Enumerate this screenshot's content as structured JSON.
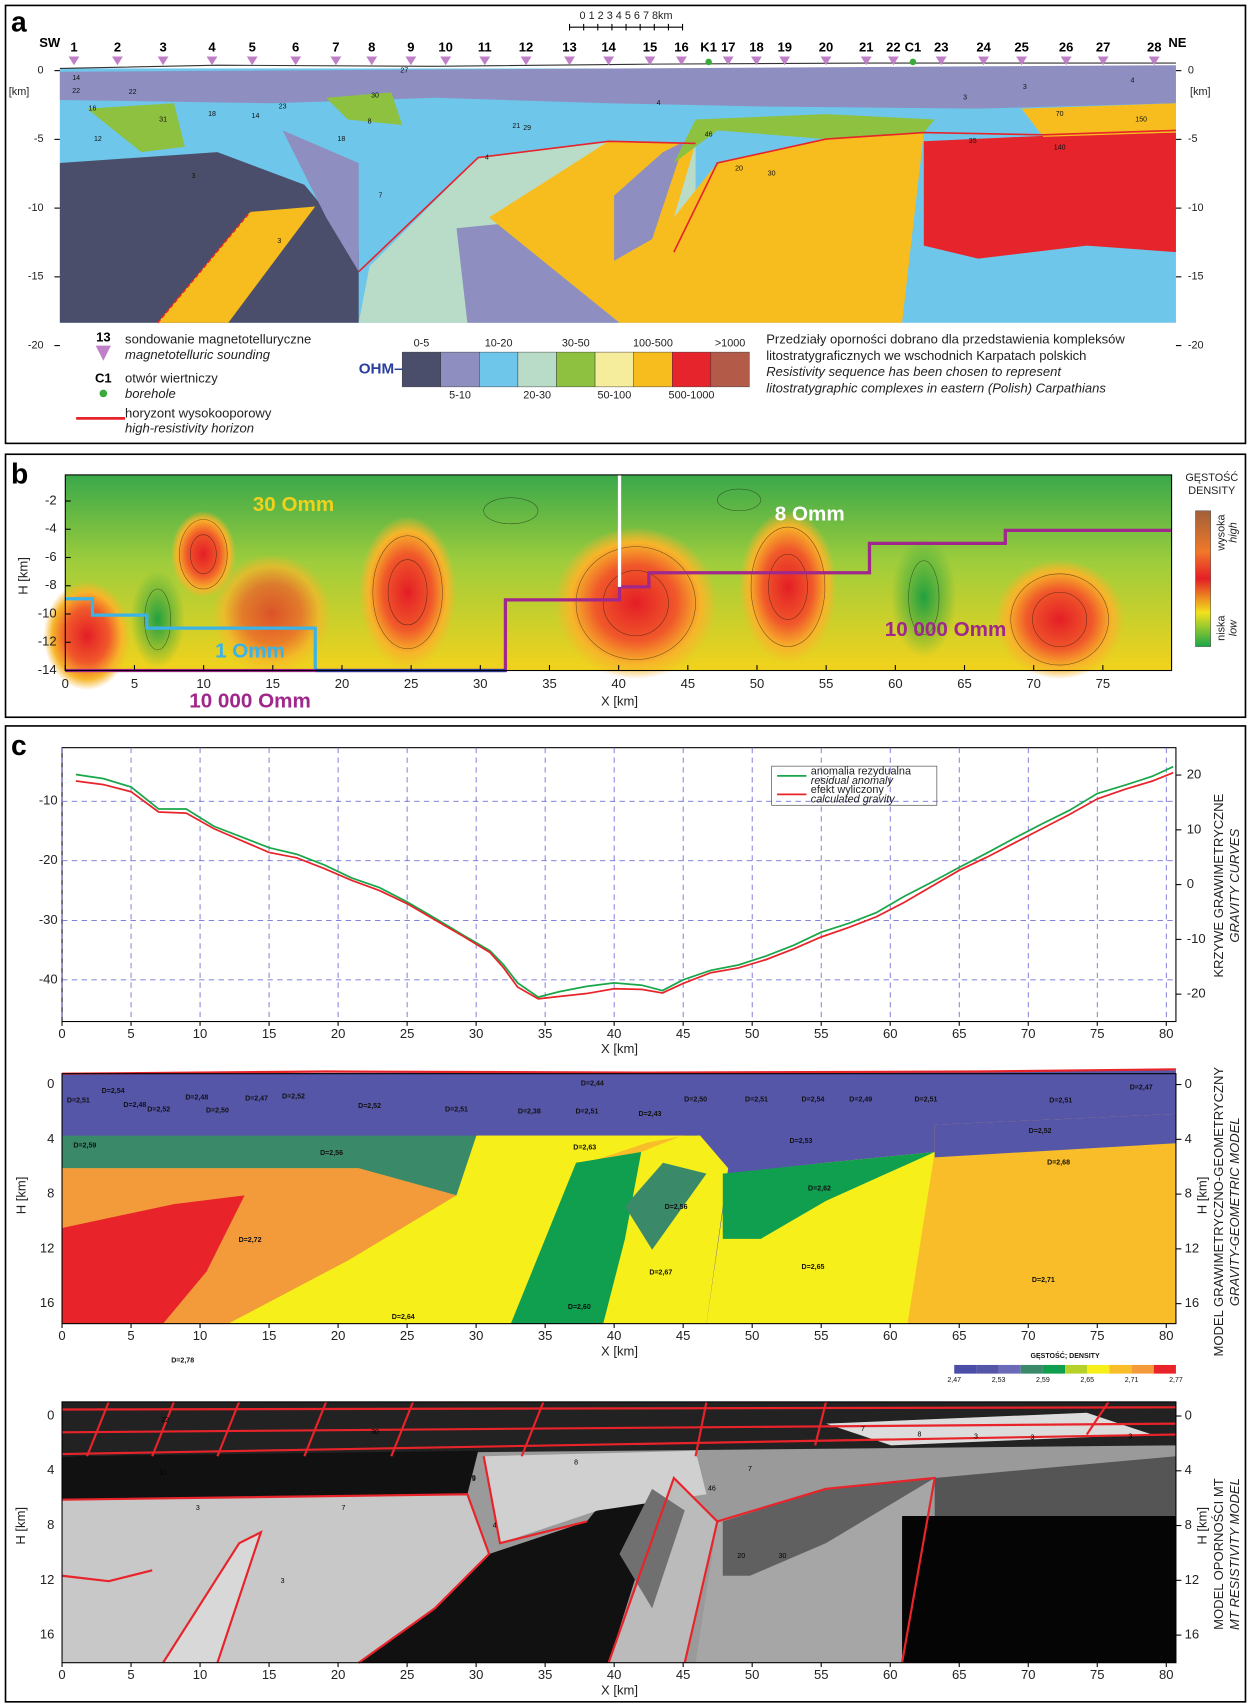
{
  "panel_a": {
    "label": "a",
    "sw": "SW",
    "ne": "NE",
    "scale_bar": "0 1 2 3 4 5 6 7 8km",
    "stations": [
      "1",
      "2",
      "3",
      "4",
      "5",
      "6",
      "7",
      "8",
      "9",
      "10",
      "11",
      "12",
      "13",
      "14",
      "15",
      "16",
      "K1",
      "17",
      "18",
      "19",
      "20",
      "21",
      "22",
      "C1",
      "23",
      "24",
      "25",
      "26",
      "27",
      "28"
    ],
    "depth_ticks": [
      0,
      -5,
      -10,
      -15,
      -20
    ],
    "depth_unit": "[km]",
    "region_labels": [
      "14",
      "22",
      "16",
      "22",
      "31",
      "12",
      "18",
      "14",
      "23",
      "18",
      "30",
      "8",
      "27",
      "21",
      "29",
      "46",
      "20",
      "30",
      "35",
      "140",
      "70",
      "150",
      "3",
      "3",
      "4",
      "4",
      "3",
      "3",
      "4",
      "7"
    ],
    "legend": {
      "sounding_no": "13",
      "sounding": "sondowanie magnetotelluryczne",
      "sounding_en": "magnetotelluric sounding",
      "borehole_no": "C1",
      "borehole": "otwór wiertniczy",
      "borehole_en": "borehole",
      "horizon": "horyzont wysokooporowy",
      "horizon_en": "high-resistivity horizon",
      "unit": "OHM–M",
      "classes": [
        {
          "label": "0-5",
          "color": "#4a4e6a"
        },
        {
          "label": "5-10",
          "color": "#8e8fc0"
        },
        {
          "label": "10-20",
          "color": "#6ec6ea"
        },
        {
          "label": "20-30",
          "color": "#b9dcc9"
        },
        {
          "label": "30-50",
          "color": "#8dc13f"
        },
        {
          "label": "50-100",
          "color": "#f5ec9c"
        },
        {
          "label": "100-500",
          "color": "#f7bd1e"
        },
        {
          "label": "500-1000",
          "color": "#e6242b"
        },
        {
          "label": ">1000",
          "color": "#b35a48"
        }
      ],
      "note_lines": [
        "Przedziały oporności dobrano dla przedstawienia kompleksów",
        "litostratygraficznych we wschodnich Karpatach polskich",
        "Resistivity sequence has been chosen to represent",
        "litostratygraphic complexes in eastern (Polish) Carpathians"
      ]
    }
  },
  "panel_b": {
    "label": "b",
    "y_label": "H [km]",
    "x_label": "X [km]",
    "yticks": [
      -2,
      -4,
      -6,
      -8,
      -10,
      -12,
      -14
    ],
    "xticks": [
      0,
      5,
      10,
      15,
      20,
      25,
      30,
      35,
      40,
      45,
      50,
      55,
      60,
      65,
      70,
      75
    ],
    "annotations": [
      "30 Omm",
      "8 Omm",
      "1 Omm",
      "10 000 Omm",
      "10 000 Omm"
    ],
    "colorbar": {
      "title": "GĘSTOŚĆ",
      "title_en": "DENSITY",
      "high": "wysoka",
      "high_en": "high",
      "low": "niska",
      "low_en": "low"
    }
  },
  "chart_data": {
    "type": "line",
    "label": "c",
    "x_label": "X [km]",
    "y2_label": "KRZYWE GRAWIMETRYCZNE",
    "y2_label_en": "GRAVITY CURVES",
    "xlim": [
      0,
      80.7
    ],
    "ylim": [
      -47,
      -1
    ],
    "y2lim": [
      -25,
      25
    ],
    "xticks": [
      0,
      5,
      10,
      15,
      20,
      25,
      30,
      35,
      40,
      45,
      50,
      55,
      60,
      65,
      70,
      75,
      80
    ],
    "yticks": [
      -10,
      -20,
      -30,
      -40
    ],
    "y2ticks": [
      20,
      10,
      0,
      -10,
      -20
    ],
    "grid": true,
    "x": [
      1,
      3,
      5,
      7,
      9,
      11,
      13,
      15,
      17,
      19,
      21,
      23,
      25,
      27,
      29,
      31,
      32,
      33,
      34.5,
      36,
      38,
      40,
      42,
      43.5,
      45,
      47,
      49,
      51,
      53,
      55,
      57,
      59,
      61,
      63,
      65,
      67,
      69,
      71,
      73,
      75,
      77,
      79,
      80.5
    ],
    "series": [
      {
        "name": "anomalia rezydualna",
        "name_en": "residual anomaly",
        "color": "#1aa64a",
        "values": [
          -5.5,
          -6.2,
          -7.6,
          -11.3,
          -11.3,
          -14.2,
          -16,
          -17.8,
          -18.9,
          -20.7,
          -22.9,
          -24.5,
          -26.9,
          -29.6,
          -32.4,
          -35.1,
          -37.5,
          -40.5,
          -42.9,
          -42,
          -41.1,
          -40.5,
          -40.9,
          -41.8,
          -40,
          -38.4,
          -37.5,
          -36,
          -34.2,
          -32,
          -30.5,
          -28.7,
          -26,
          -23.6,
          -21.1,
          -18.7,
          -16.2,
          -13.8,
          -11.5,
          -8.7,
          -7.3,
          -5.8,
          -4.2
        ]
      },
      {
        "name": "efekt wyliczony",
        "name_en": "calculated gravity",
        "color": "#e8242a",
        "values": [
          -6.6,
          -7.2,
          -8.4,
          -11.8,
          -12,
          -14.6,
          -16.6,
          -18.6,
          -19.5,
          -21.3,
          -23.3,
          -25,
          -27.2,
          -29.9,
          -32.6,
          -35.4,
          -38,
          -41.2,
          -43.2,
          -42.8,
          -42.3,
          -41.5,
          -41.6,
          -42.2,
          -40.6,
          -38.8,
          -38,
          -36.6,
          -34.8,
          -32.8,
          -31.2,
          -29.4,
          -27,
          -24.3,
          -21.6,
          -19.4,
          -17,
          -14.6,
          -12.2,
          -9.6,
          -8,
          -6.6,
          -5.2
        ]
      }
    ]
  },
  "panel_c": {
    "y_label": "H [km]",
    "depth_ticks": [
      0,
      4,
      8,
      12,
      16
    ],
    "model_title": "MODEL GRAWIMETRYCZNO-GEOMETRYCZNY",
    "model_title_en": "GRAVITY-GEOMETRIC MODEL",
    "mt_title": "MODEL OPORNOŚCI MT",
    "mt_title_en": "MT RESISTIVITY MODEL",
    "density_labels": [
      "D=2,51",
      "D=2,54",
      "D=2,48",
      "D=2,52",
      "D=2,48",
      "D=2,50",
      "D=2,47",
      "D=2,52",
      "D=2,52",
      "D=2,51",
      "D=2,44",
      "D=2,38",
      "D=2,51",
      "D=2,43",
      "D=2,50",
      "D=2,51",
      "D=2,54",
      "D=2,49",
      "D=2,51",
      "D=2,51",
      "D=2,47",
      "D=2,59",
      "D=2,56",
      "D=2,63",
      "D=2,53",
      "D=2,52",
      "D=2,56",
      "D=2,62",
      "D=2,68",
      "D=2,72",
      "D=2,60",
      "D=2,67",
      "D=2,65",
      "D=2,71",
      "D=2,64",
      "D=2,78"
    ],
    "colorbar_title": "GĘSTOŚĆ; DENSITY",
    "colorbar_ticks": [
      "2,47",
      "2,53",
      "2,59",
      "2,65",
      "2,71",
      "2,77"
    ],
    "mt_labels": [
      "22",
      "31",
      "30",
      "9",
      "8",
      "46",
      "7",
      "20",
      "30",
      "7",
      "8",
      "3",
      "3",
      "3",
      "4",
      "3",
      "7",
      "9",
      "3"
    ]
  }
}
